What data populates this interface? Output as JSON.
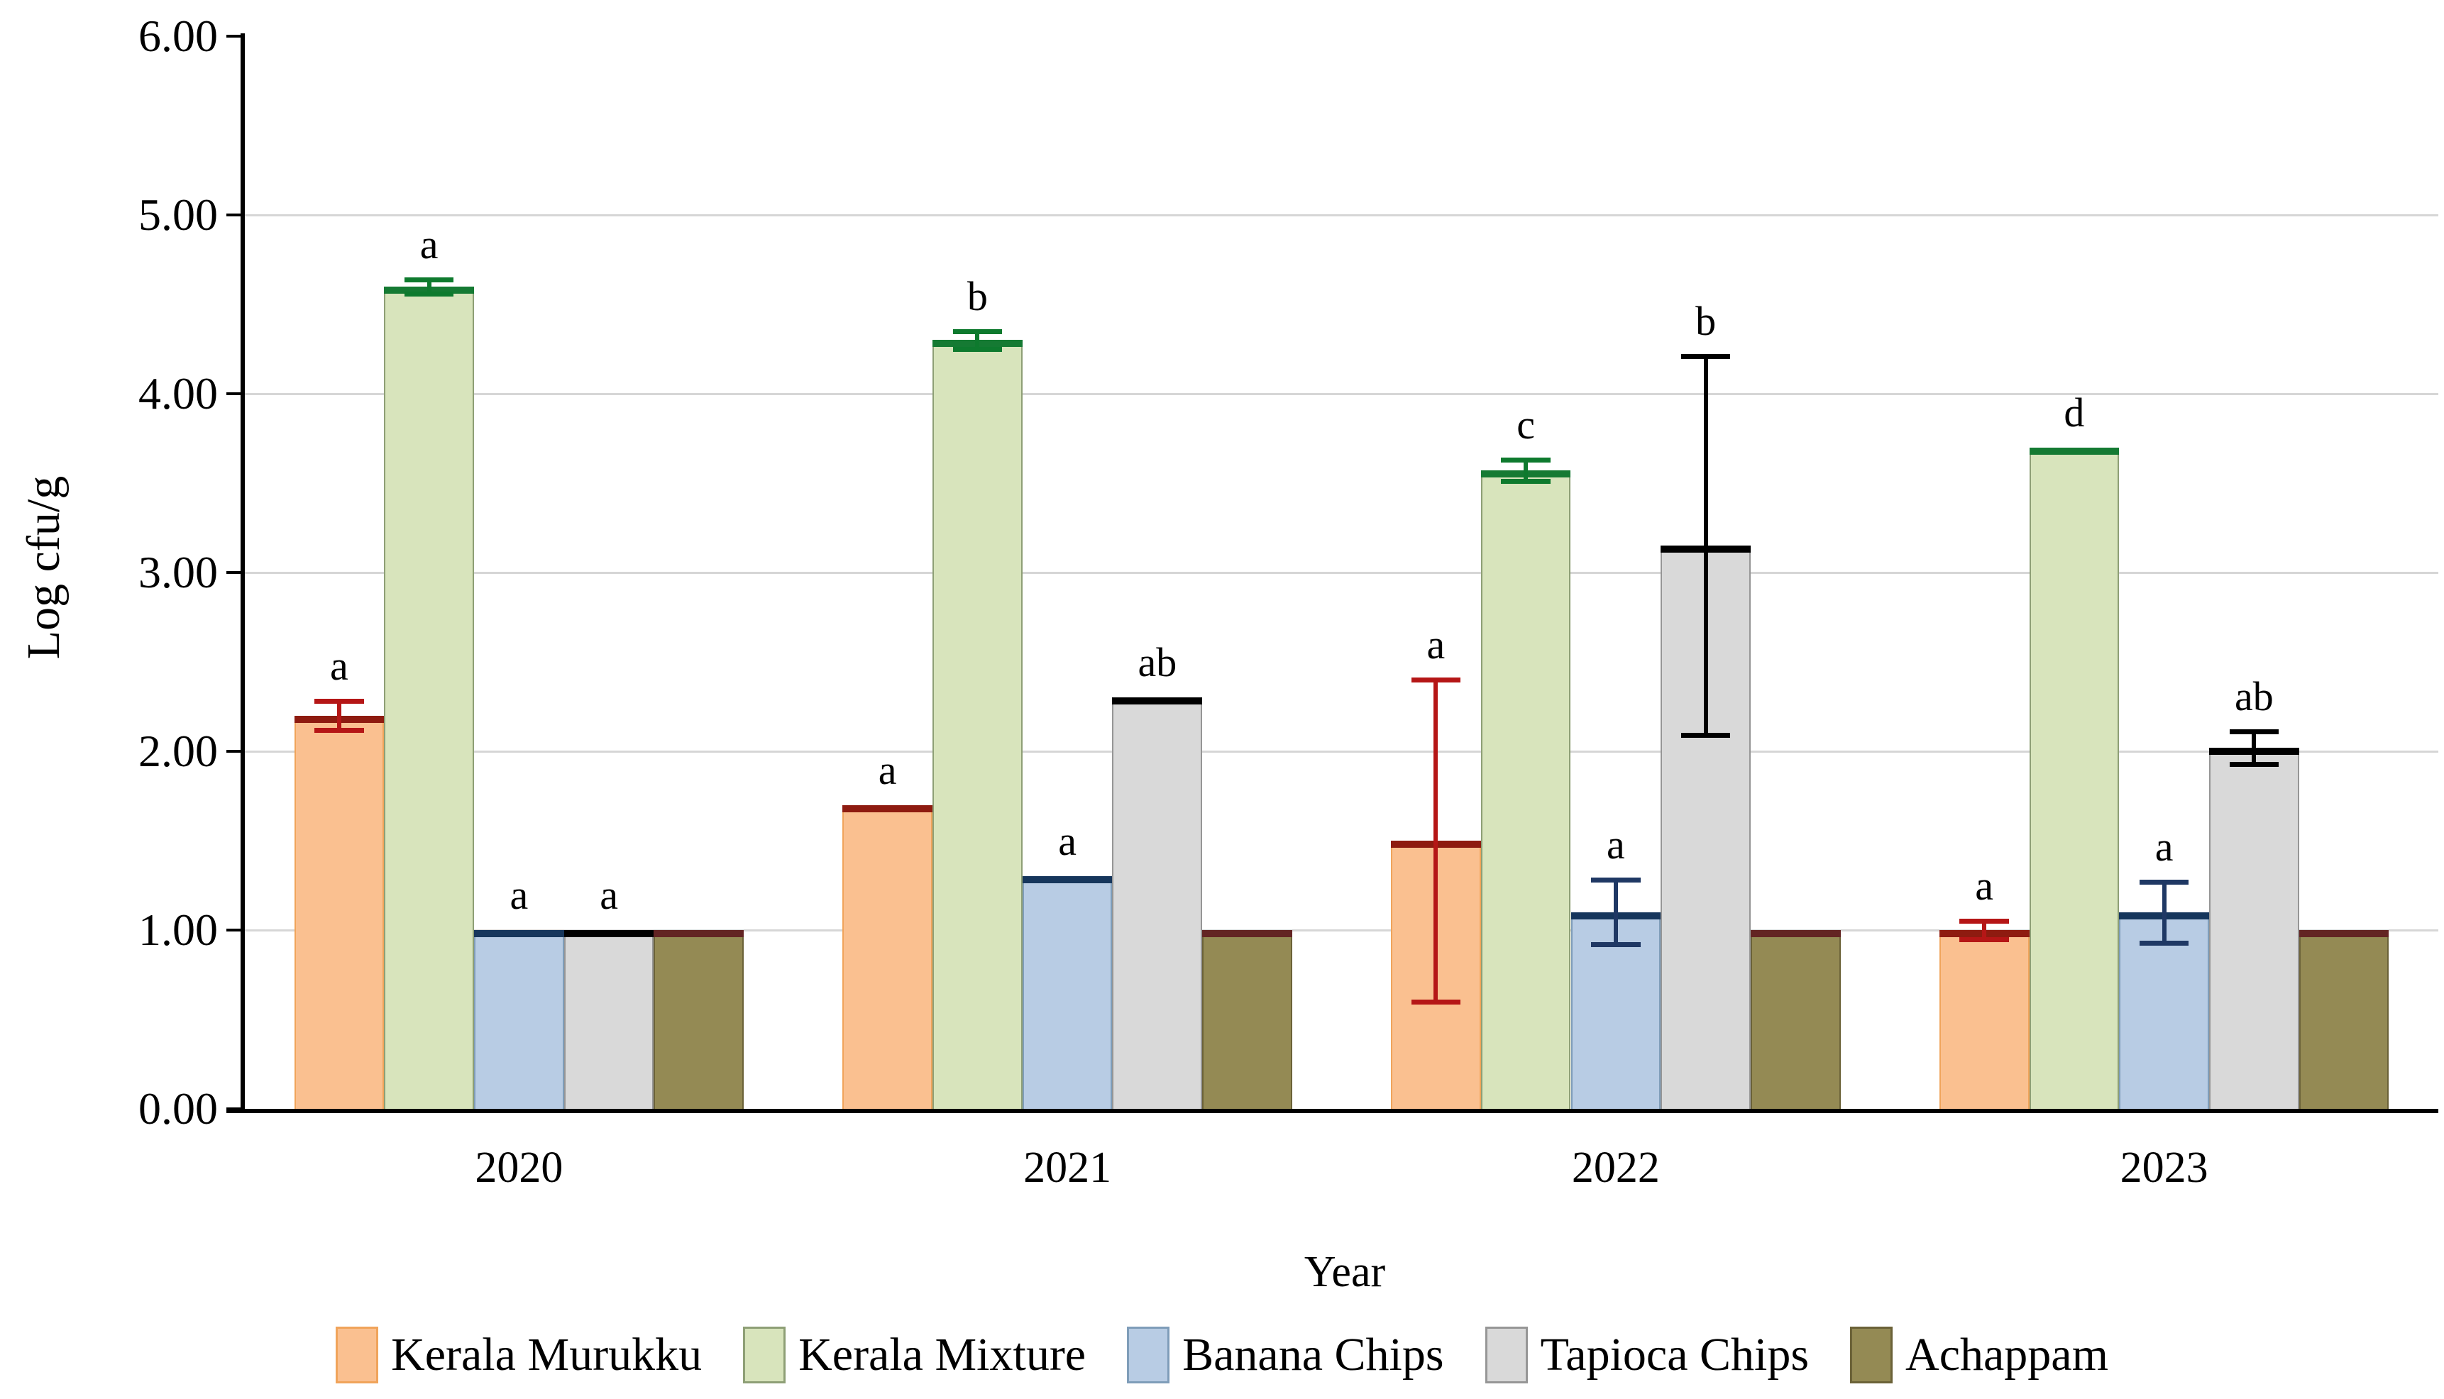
{
  "figure": {
    "ylabel": "Log cfu/g",
    "xlabel": "Year"
  },
  "chart_data": {
    "type": "bar",
    "title": "",
    "xlabel": "Year",
    "ylabel": "Log cfu/g",
    "ylim": [
      0,
      6
    ],
    "ytick_labels": [
      "0.00",
      "1.00",
      "2.00",
      "3.00",
      "4.00",
      "5.00",
      "6.00"
    ],
    "categories": [
      "2020",
      "2021",
      "2022",
      "2023"
    ],
    "grid": "horizontal-major",
    "legend_position": "bottom",
    "annotation_note": "letters above bars denote statistical significance groups",
    "series": [
      {
        "name": "Kerala Murukku",
        "fill": "#FAC090",
        "border": "#F0A45B",
        "cap": "#8E1B10",
        "err_color": "#B51616",
        "values": [
          2.2,
          1.7,
          1.5,
          1.0
        ],
        "errors": [
          0.08,
          0,
          0.9,
          0.05
        ],
        "letters": [
          "a",
          "a",
          "a",
          "a"
        ]
      },
      {
        "name": "Kerala Mixture",
        "fill": "#D8E4BC",
        "border": "#8E9F76",
        "cap": "#157A33",
        "err_color": "#0E7A2E",
        "values": [
          4.6,
          4.3,
          3.57,
          3.7
        ],
        "errors": [
          0.04,
          0.05,
          0.06,
          0
        ],
        "letters": [
          "a",
          "b",
          "c",
          "d"
        ]
      },
      {
        "name": "Banana Chips",
        "fill": "#B8CCE4",
        "border": "#7F9DB9",
        "cap": "#16365C",
        "err_color": "#1F3864",
        "values": [
          1.0,
          1.3,
          1.1,
          1.1
        ],
        "errors": [
          0,
          0,
          0.18,
          0.17
        ],
        "letters": [
          "a",
          "a",
          "a",
          "a"
        ]
      },
      {
        "name": "Tapioca Chips",
        "fill": "#D9D9D9",
        "border": "#969696",
        "cap": "#000000",
        "err_color": "#000000",
        "values": [
          1.0,
          2.3,
          3.15,
          2.02
        ],
        "errors": [
          0,
          0,
          1.06,
          0.09
        ],
        "letters": [
          "a",
          "ab",
          "b",
          "ab"
        ]
      },
      {
        "name": "Achappam",
        "fill": "#948A54",
        "border": "#6B6238",
        "cap": "#632423",
        "err_color": "#632423",
        "values": [
          1.0,
          1.0,
          1.0,
          1.0
        ],
        "errors": [
          0,
          0,
          0,
          0
        ],
        "letters": [
          "",
          "",
          "",
          ""
        ]
      }
    ]
  }
}
